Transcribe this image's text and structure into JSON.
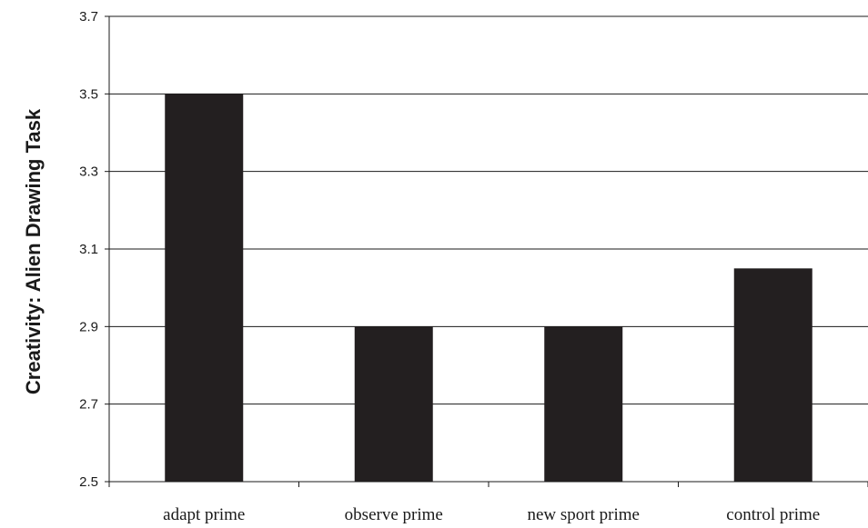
{
  "chart_data": {
    "type": "bar",
    "title": "",
    "xlabel": "",
    "ylabel": "Creativity: Alien Drawing Task",
    "categories": [
      "adapt prime",
      "observe prime",
      "new sport prime",
      "control prime"
    ],
    "values": [
      3.5,
      2.9,
      2.9,
      3.05
    ],
    "ylim": [
      2.5,
      3.7
    ],
    "yticks": [
      "2.5",
      "2.7",
      "2.9",
      "3.1",
      "3.3",
      "3.5",
      "3.7"
    ],
    "grid": "horizontal",
    "legend": "none",
    "bar_color": "#231f20"
  }
}
